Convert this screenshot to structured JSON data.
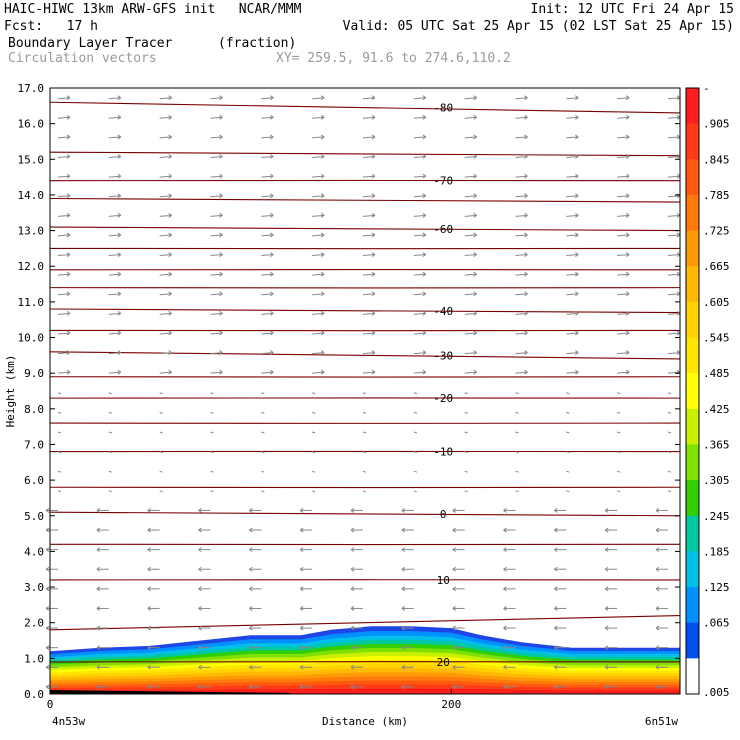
{
  "header": {
    "line1_left": "HAIC-HIWC 13km ARW-GFS init   NCAR/MMM",
    "line1_right": "Init: 12 UTC Fri 24 Apr 15",
    "line2_left": "Fcst:   17 h",
    "line2_right": "Valid: 05 UTC Sat 25 Apr 15 (02 LST Sat 25 Apr 15)",
    "line3_field": "Boundary Layer Tracer",
    "line3_units": "(fraction)",
    "line4_field": "Circulation vectors",
    "line4_xy": "XY= 259.5, 91.6 to 274.6,110.2"
  },
  "chart_data": {
    "type": "heatmap",
    "ylabel": "Height (km)",
    "xlabel": "Distance (km)",
    "x_left_label": "4n53w",
    "x_right_label": "6n51w",
    "ylim": [
      0,
      17
    ],
    "xlim": [
      0,
      314
    ],
    "yticks": [
      "0.0",
      "1.0",
      "2.0",
      "3.0",
      "4.0",
      "5.0",
      "6.0",
      "7.0",
      "8.0",
      "9.0",
      "10.0",
      "11.0",
      "12.0",
      "13.0",
      "14.0",
      "15.0",
      "16.0",
      "17.0"
    ],
    "xticks": [
      {
        "value": 0,
        "label": "0"
      },
      {
        "value": 200,
        "label": "200"
      }
    ],
    "colorbar": {
      "labels": [
        "-",
        ".905",
        ".845",
        ".785",
        ".725",
        ".665",
        ".605",
        ".545",
        ".485",
        ".425",
        ".365",
        ".305",
        ".245",
        ".185",
        ".125",
        ".065",
        ".005"
      ],
      "colors": [
        "#ff1e1e",
        "#ff3a16",
        "#ff5a10",
        "#ff7a0a",
        "#ff9a06",
        "#ffb804",
        "#ffd200",
        "#ffe600",
        "#ffff00",
        "#c8f000",
        "#80e000",
        "#30d000",
        "#00c8a0",
        "#00c0e8",
        "#0090ff",
        "#0050f0",
        "#ffffff"
      ]
    },
    "tracer_top_km": [
      {
        "x": 0,
        "top": 1.2
      },
      {
        "x": 25,
        "top": 1.3
      },
      {
        "x": 50,
        "top": 1.35
      },
      {
        "x": 75,
        "top": 1.5
      },
      {
        "x": 100,
        "top": 1.65
      },
      {
        "x": 125,
        "top": 1.65
      },
      {
        "x": 140,
        "top": 1.8
      },
      {
        "x": 160,
        "top": 1.9
      },
      {
        "x": 180,
        "top": 1.9
      },
      {
        "x": 200,
        "top": 1.85
      },
      {
        "x": 215,
        "top": 1.65
      },
      {
        "x": 235,
        "top": 1.45
      },
      {
        "x": 260,
        "top": 1.3
      },
      {
        "x": 285,
        "top": 1.3
      },
      {
        "x": 314,
        "top": 1.3
      }
    ],
    "temperature_contours": [
      {
        "label": "-80",
        "y0": 16.6,
        "y1": 16.3
      },
      {
        "label": null,
        "y0": 15.2,
        "y1": 15.1
      },
      {
        "label": "-70",
        "y0": 14.4,
        "y1": 14.4
      },
      {
        "label": null,
        "y0": 13.9,
        "y1": 13.8
      },
      {
        "label": "-60",
        "y0": 13.1,
        "y1": 13.0
      },
      {
        "label": null,
        "y0": 12.5,
        "y1": 12.5
      },
      {
        "label": null,
        "y0": 11.9,
        "y1": 11.9
      },
      {
        "label": null,
        "y0": 11.4,
        "y1": 11.4
      },
      {
        "label": "-40",
        "y0": 10.8,
        "y1": 10.7
      },
      {
        "label": null,
        "y0": 10.2,
        "y1": 10.2
      },
      {
        "label": "-30",
        "y0": 9.6,
        "y1": 9.4
      },
      {
        "label": null,
        "y0": 8.9,
        "y1": 8.9
      },
      {
        "label": "-20",
        "y0": 8.3,
        "y1": 8.3
      },
      {
        "label": null,
        "y0": 7.6,
        "y1": 7.6
      },
      {
        "label": "-10",
        "y0": 6.8,
        "y1": 6.8
      },
      {
        "label": null,
        "y0": 5.8,
        "y1": 5.8
      },
      {
        "label": "0",
        "y0": 5.1,
        "y1": 5.0
      },
      {
        "label": null,
        "y0": 4.2,
        "y1": 4.2
      },
      {
        "label": "10",
        "y0": 3.2,
        "y1": 3.2
      },
      {
        "label": null,
        "y0": 1.8,
        "y1": 2.2
      },
      {
        "label": "20",
        "y0": 0.9,
        "y1": 0.9
      }
    ],
    "wind_regimes": [
      {
        "from_km": 9.0,
        "to_km": 17.0,
        "direction": "east"
      },
      {
        "from_km": 5.2,
        "to_km": 9.0,
        "direction": "weak"
      },
      {
        "from_km": 0.0,
        "to_km": 5.2,
        "direction": "west"
      }
    ]
  }
}
